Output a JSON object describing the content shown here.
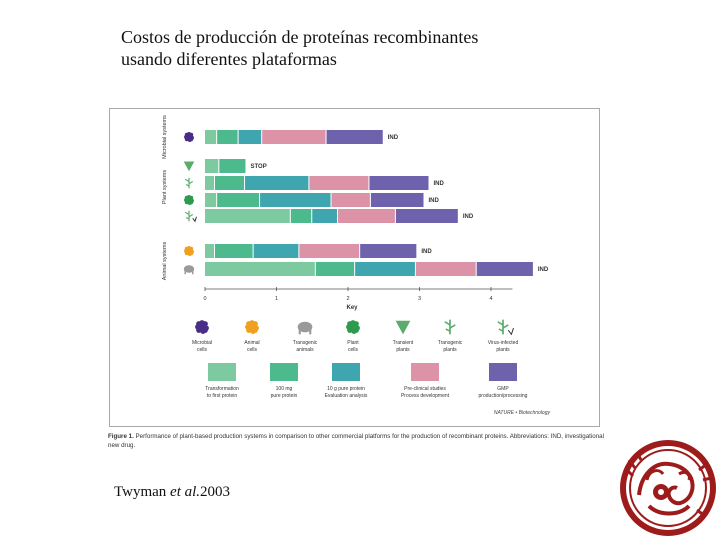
{
  "title": {
    "line1": "Costos de producción de proteínas recombinantes",
    "line2": "usando diferentes plataformas"
  },
  "citation": {
    "author": "Twyman",
    "etal": "et al.",
    "year": "2003"
  },
  "figure": {
    "credit": "NATURE • Biotechnology",
    "caption_label": "Figure 1.",
    "caption_text": "Performance of plant-based production systems in comparison to other commercial platforms for the production of recombinant proteins. Abbreviations: IND, investigational new drug."
  },
  "chart_data": {
    "type": "bar",
    "orientation": "horizontal-stacked",
    "x_axis": {
      "ticks": [
        "0",
        "1",
        "2",
        "3",
        "4"
      ],
      "xlim": [
        0,
        4.6
      ],
      "xlabel": "Key"
    },
    "groups": [
      {
        "label": "Microbial systems",
        "rows": [
          0
        ]
      },
      {
        "label": "Plant systems",
        "rows": [
          1,
          2,
          3,
          4
        ]
      },
      {
        "label": "Animal systems",
        "rows": [
          5,
          6
        ]
      }
    ],
    "stages": [
      {
        "name": "Transformation to first protein",
        "color": "#7dc9a0"
      },
      {
        "name": "100 mg pure protein",
        "color": "#4dba8e"
      },
      {
        "name": "10 g pure protein Evaluation analysis",
        "color": "#3fa6b0"
      },
      {
        "name": "Pre-clinical studies Process development",
        "color": "#dc93a8"
      },
      {
        "name": "GMP production/processing",
        "color": "#6f62ad"
      }
    ],
    "rows": [
      {
        "icon": "microbial",
        "segments": [
          0.17,
          0.3,
          0.33,
          0.9,
          0.8
        ],
        "end_label": "IND"
      },
      {
        "icon": "transient",
        "segments": [
          0.2,
          0.38,
          0,
          0,
          0
        ],
        "end_label": "STOP"
      },
      {
        "icon": "transgenic-plant",
        "segments": [
          0.14,
          0.42,
          0.9,
          0.84,
          0.84
        ],
        "end_label": "IND"
      },
      {
        "icon": "plant-cells",
        "segments": [
          0.17,
          0.6,
          1.0,
          0.55,
          0.75
        ],
        "end_label": "IND"
      },
      {
        "icon": "virus-plant",
        "segments": [
          1.2,
          0.3,
          0.36,
          0.81,
          0.88
        ],
        "end_label": "IND"
      },
      {
        "icon": "animal-cells",
        "segments": [
          0.14,
          0.54,
          0.64,
          0.85,
          0.8
        ],
        "end_label": "IND"
      },
      {
        "icon": "transgenic-animal",
        "segments": [
          1.55,
          0.55,
          0.85,
          0.85,
          0.8
        ],
        "end_label": "IND"
      }
    ],
    "system_key": [
      {
        "icon": "microbial",
        "label": "Microbial cells",
        "color": "#4a2d86"
      },
      {
        "icon": "animal-cells",
        "label": "Animal cells",
        "color": "#f0a01e"
      },
      {
        "icon": "transgenic-animal",
        "label": "Transgenic animals",
        "color": "#9a9a9a"
      },
      {
        "icon": "plant-cells",
        "label": "Plant cells",
        "color": "#2e9a4e"
      },
      {
        "icon": "transient",
        "label": "Transient plants",
        "color": "#5aac6a"
      },
      {
        "icon": "transgenic-plant",
        "label": "Transgenic plants",
        "color": "#5aac6a"
      },
      {
        "icon": "virus-plant",
        "label": "Virus-infected plants",
        "color": "#5aac6a"
      }
    ]
  }
}
